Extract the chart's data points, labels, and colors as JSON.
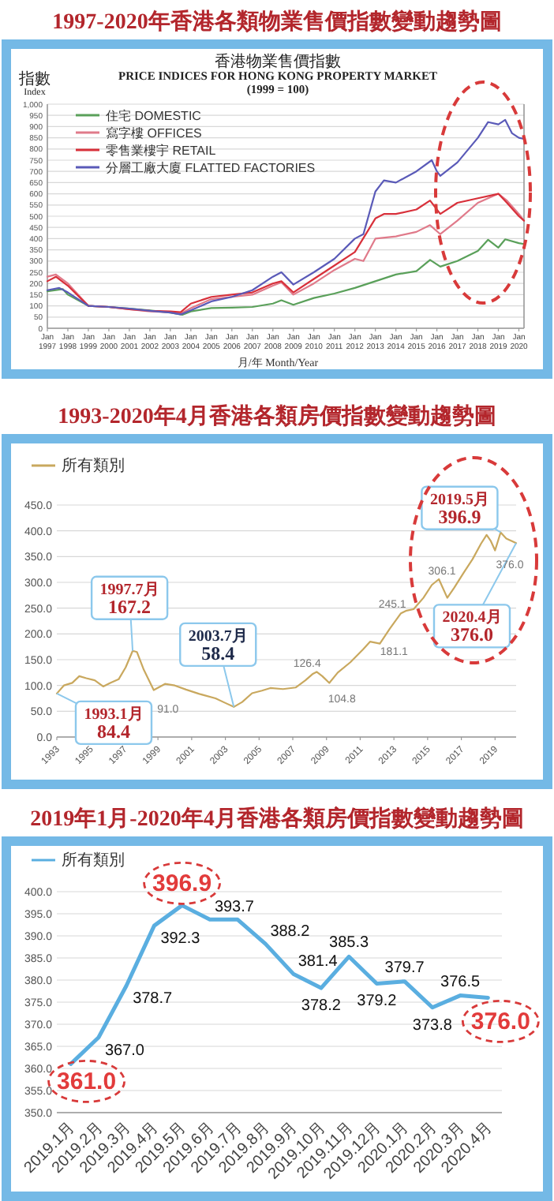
{
  "chart_data": [
    {
      "type": "line",
      "title": "1997-2020年香港各類物業售價指數變動趨勢圖",
      "subtitle": "香港物業售價指數\nPRICE INDICES FOR HONG KONG PROPERTY MARKET\n(1999 = 100)",
      "ylabel": "指數\nIndex",
      "xlabel": "月/年 Month/Year",
      "legend": "top left",
      "grid": "y",
      "xlim": [
        "1997-01",
        "2020-04"
      ],
      "ylim": [
        0,
        1000
      ],
      "xticks": [
        {
          "value": "1997-01",
          "label": "Jan 1997"
        },
        {
          "value": "1998-01",
          "label": "Jan 1998"
        },
        {
          "value": "1999-01",
          "label": "Jan 1999"
        },
        {
          "value": "2000-01",
          "label": "Jan 2000"
        },
        {
          "value": "2001-01",
          "label": "Jan 2001"
        },
        {
          "value": "2002-01",
          "label": "Jan 2002"
        },
        {
          "value": "2003-01",
          "label": "Jan 2003"
        },
        {
          "value": "2004-01",
          "label": "Jan 2004"
        },
        {
          "value": "2005-01",
          "label": "Jan 2005"
        },
        {
          "value": "2006-01",
          "label": "Jan 2006"
        },
        {
          "value": "2007-01",
          "label": "Jan 2007"
        },
        {
          "value": "2008-01",
          "label": "Jan 2008"
        },
        {
          "value": "2009-01",
          "label": "Jan 2009"
        },
        {
          "value": "2010-01",
          "label": "Jan 2010"
        },
        {
          "value": "2011-01",
          "label": "Jan 2011"
        },
        {
          "value": "2012-01",
          "label": "Jan 2012"
        },
        {
          "value": "2013-01",
          "label": "Jan 2013"
        },
        {
          "value": "2014-01",
          "label": "Jan 2014"
        },
        {
          "value": "2015-01",
          "label": "Jan 2015"
        },
        {
          "value": "2016-01",
          "label": "Jan 2016"
        },
        {
          "value": "2017-01",
          "label": "Jan 2017"
        },
        {
          "value": "2018-01",
          "label": "Jan 2018"
        },
        {
          "value": "2019-01",
          "label": "Jan 2019"
        },
        {
          "value": "2020-01",
          "label": "Jan 2020"
        }
      ],
      "yticks": [
        0,
        50,
        100,
        150,
        200,
        250,
        300,
        350,
        400,
        450,
        500,
        550,
        600,
        650,
        700,
        750,
        800,
        850,
        900,
        950,
        {
          "value": 1000,
          "label": "1,000"
        }
      ],
      "series": [
        {
          "name": "住宅 DOMESTIC",
          "color": "#5aa05a",
          "x": [
            "1997-01",
            "1997-10",
            "1998-01",
            "1999-01",
            "2000-01",
            "2001-01",
            "2002-01",
            "2003-01",
            "2003-08",
            "2004-01",
            "2005-01",
            "2006-01",
            "2007-01",
            "2008-01",
            "2008-06",
            "2009-01",
            "2010-01",
            "2011-01",
            "2012-01",
            "2013-01",
            "2014-01",
            "2015-01",
            "2015-09",
            "2016-03",
            "2017-01",
            "2018-01",
            "2018-07",
            "2019-01",
            "2019-05",
            "2020-01",
            "2020-04"
          ],
          "values": [
            165,
            175,
            150,
            100,
            95,
            88,
            80,
            70,
            60,
            75,
            90,
            92,
            95,
            110,
            125,
            105,
            135,
            155,
            180,
            210,
            240,
            255,
            305,
            275,
            300,
            345,
            395,
            360,
            397,
            380,
            376
          ]
        },
        {
          "name": "寫字樓 OFFICES",
          "color": "#e07a8a",
          "x": [
            "1997-01",
            "1997-06",
            "1998-01",
            "1999-01",
            "2000-01",
            "2001-01",
            "2002-01",
            "2003-01",
            "2003-07",
            "2004-01",
            "2005-01",
            "2006-01",
            "2007-01",
            "2008-01",
            "2008-06",
            "2009-01",
            "2010-01",
            "2011-01",
            "2012-01",
            "2012-06",
            "2013-01",
            "2014-01",
            "2015-01",
            "2015-09",
            "2016-03",
            "2017-01",
            "2018-01",
            "2019-01",
            "2019-06",
            "2020-01",
            "2020-04"
          ],
          "values": [
            230,
            240,
            200,
            100,
            95,
            85,
            75,
            72,
            65,
            90,
            130,
            140,
            150,
            190,
            205,
            150,
            200,
            260,
            310,
            300,
            400,
            410,
            430,
            460,
            420,
            480,
            560,
            600,
            570,
            510,
            480
          ]
        },
        {
          "name": "零售業樓宇 RETAIL",
          "color": "#d8303a",
          "x": [
            "1997-01",
            "1997-06",
            "1998-01",
            "1999-01",
            "2000-01",
            "2001-01",
            "2002-01",
            "2003-01",
            "2003-07",
            "2004-01",
            "2005-01",
            "2006-01",
            "2007-01",
            "2008-01",
            "2008-06",
            "2009-01",
            "2010-01",
            "2011-01",
            "2012-01",
            "2013-01",
            "2013-06",
            "2014-01",
            "2015-01",
            "2015-09",
            "2016-03",
            "2017-01",
            "2018-01",
            "2019-01",
            "2019-06",
            "2020-01",
            "2020-04"
          ],
          "values": [
            210,
            230,
            190,
            100,
            95,
            85,
            78,
            75,
            72,
            110,
            140,
            150,
            160,
            200,
            210,
            160,
            220,
            280,
            340,
            490,
            510,
            510,
            530,
            570,
            510,
            560,
            580,
            600,
            560,
            500,
            480
          ]
        },
        {
          "name": "分層工廠大廈 FLATTED FACTORIES",
          "color": "#5a5ab8",
          "x": [
            "1997-01",
            "1997-08",
            "1998-01",
            "1999-01",
            "2000-01",
            "2001-01",
            "2002-01",
            "2003-01",
            "2003-07",
            "2004-01",
            "2005-01",
            "2006-01",
            "2007-01",
            "2008-01",
            "2008-06",
            "2009-01",
            "2010-01",
            "2011-01",
            "2012-01",
            "2012-06",
            "2013-01",
            "2013-06",
            "2014-01",
            "2015-01",
            "2015-10",
            "2016-01",
            "2016-03",
            "2017-01",
            "2018-01",
            "2018-07",
            "2019-01",
            "2019-05",
            "2019-09",
            "2020-01",
            "2020-04"
          ],
          "values": [
            170,
            180,
            160,
            100,
            95,
            88,
            78,
            70,
            62,
            80,
            120,
            140,
            170,
            230,
            250,
            195,
            250,
            310,
            400,
            420,
            610,
            660,
            650,
            700,
            750,
            700,
            680,
            740,
            850,
            920,
            910,
            930,
            870,
            850,
            845
          ]
        }
      ]
    },
    {
      "type": "line",
      "title": "1993-2020年4月香港各類房價指數變動趨勢圖",
      "legend": "top left",
      "grid": "y",
      "xlim": [
        "1993-01",
        "2020-04"
      ],
      "ylim": [
        0,
        450
      ],
      "xticks": [
        {
          "value": "1993-01",
          "label": "1993"
        },
        {
          "value": "1995-01",
          "label": "1995"
        },
        {
          "value": "1997-01",
          "label": "1997"
        },
        {
          "value": "1999-01",
          "label": "1999"
        },
        {
          "value": "2001-01",
          "label": "2001"
        },
        {
          "value": "2003-01",
          "label": "2003"
        },
        {
          "value": "2005-01",
          "label": "2005"
        },
        {
          "value": "2007-01",
          "label": "2007"
        },
        {
          "value": "2009-01",
          "label": "2009"
        },
        {
          "value": "2011-01",
          "label": "2011"
        },
        {
          "value": "2013-01",
          "label": "2013"
        },
        {
          "value": "2015-01",
          "label": "2015"
        },
        {
          "value": "2017-01",
          "label": "2017"
        },
        {
          "value": "2019-01",
          "label": "2019"
        }
      ],
      "yticks": [
        {
          "value": 0,
          "label": "0.0"
        },
        {
          "value": 50,
          "label": "50.0"
        },
        {
          "value": 100,
          "label": "100.0"
        },
        {
          "value": 150,
          "label": "150.0"
        },
        {
          "value": 200,
          "label": "200.0"
        },
        {
          "value": 250,
          "label": "250.0"
        },
        {
          "value": 300,
          "label": "300.0"
        },
        {
          "value": 350,
          "label": "350.0"
        },
        {
          "value": 400,
          "label": "400.0"
        },
        {
          "value": 450,
          "label": "450.0"
        }
      ],
      "series": [
        {
          "name": "所有類別",
          "color": "#c9a85e",
          "x": [
            "1993-01",
            "1993-06",
            "1993-12",
            "1994-05",
            "1994-10",
            "1995-04",
            "1995-10",
            "1996-03",
            "1996-09",
            "1997-02",
            "1997-07",
            "1997-10",
            "1998-03",
            "1998-10",
            "1999-06",
            "2000-01",
            "2000-09",
            "2001-06",
            "2002-06",
            "2003-01",
            "2003-07",
            "2004-01",
            "2004-08",
            "2005-03",
            "2005-09",
            "2006-06",
            "2007-03",
            "2007-10",
            "2008-03",
            "2008-06",
            "2008-10",
            "2009-03",
            "2009-09",
            "2010-06",
            "2011-03",
            "2011-08",
            "2012-03",
            "2012-10",
            "2013-06",
            "2013-10",
            "2014-03",
            "2014-10",
            "2015-04",
            "2015-09",
            "2016-03",
            "2016-08",
            "2017-03",
            "2017-09",
            "2018-03",
            "2018-07",
            "2018-10",
            "2019-01",
            "2019-05",
            "2019-09",
            "2020-01",
            "2020-04"
          ],
          "values": [
            84.4,
            100,
            105,
            118,
            114,
            110,
            98,
            105,
            112,
            135,
            167.2,
            165,
            130,
            91,
            103,
            100,
            92,
            84,
            75,
            66,
            58.4,
            68,
            85,
            90,
            95,
            93,
            96,
            110,
            122,
            126.4,
            118,
            104.8,
            125,
            145,
            170,
            185,
            181.1,
            210,
            240,
            245.1,
            248,
            270,
            295,
            306.1,
            270,
            290,
            320,
            345,
            375,
            392,
            380,
            362,
            396.9,
            385,
            380,
            376.0
          ]
        }
      ],
      "annotations": [
        {
          "text": "1993.1月\n84.4",
          "x": "1993-01",
          "y": 84.4
        },
        {
          "text": "1997.7月\n167.2",
          "x": "1997-07",
          "y": 167.2
        },
        {
          "text": "2003.7月\n58.4",
          "x": "2003-07",
          "y": 58.4
        },
        {
          "text": "2019.5月\n396.9",
          "x": "2019-05",
          "y": 396.9
        },
        {
          "text": "2020.4月\n376.0",
          "x": "2020-04",
          "y": 376.0
        },
        {
          "text": "91.0",
          "x": "1998-10",
          "y": 91
        },
        {
          "text": "126.4",
          "x": "2008-06",
          "y": 126.4
        },
        {
          "text": "104.8",
          "x": "2009-03",
          "y": 104.8
        },
        {
          "text": "181.1",
          "x": "2012-03",
          "y": 181.1
        },
        {
          "text": "245.1",
          "x": "2013-10",
          "y": 245.1
        },
        {
          "text": "306.1",
          "x": "2015-09",
          "y": 306.1
        },
        {
          "text": "376.0",
          "x": "2020-04",
          "y": 376.0
        }
      ]
    },
    {
      "type": "line",
      "title": "2019年1月-2020年4月香港各類房價指數變動趨勢圖",
      "legend": "top left",
      "grid": "y",
      "ylim": [
        350,
        400
      ],
      "categories": [
        "2019.1月",
        "2019.2月",
        "2019.3月",
        "2019.4月",
        "2019.5月",
        "2019.6月",
        "2019.7月",
        "2019.8月",
        "2019.9月",
        "2019.10月",
        "2019.11月",
        "2019.12月",
        "2020.1月",
        "2020.2月",
        "2020.3月",
        "2020.4月"
      ],
      "yticks": [
        {
          "value": 350,
          "label": "350.0"
        },
        {
          "value": 355,
          "label": "355.0"
        },
        {
          "value": 360,
          "label": "360.0"
        },
        {
          "value": 365,
          "label": "365.0"
        },
        {
          "value": 370,
          "label": "370.0"
        },
        {
          "value": 375,
          "label": "375.0"
        },
        {
          "value": 380,
          "label": "380.0"
        },
        {
          "value": 385,
          "label": "385.0"
        },
        {
          "value": 390,
          "label": "390.0"
        },
        {
          "value": 395,
          "label": "395.0"
        },
        {
          "value": 400,
          "label": "400.0"
        }
      ],
      "series": [
        {
          "name": "所有類別",
          "color": "#5aaee0",
          "values": [
            361.0,
            367.0,
            378.7,
            392.3,
            396.9,
            393.7,
            393.7,
            388.2,
            381.4,
            378.2,
            385.3,
            379.2,
            379.7,
            373.8,
            376.5,
            376.0
          ],
          "value_labels": [
            null,
            "367.0",
            "378.7",
            "392.3",
            null,
            "393.7",
            null,
            "388.2",
            "381.4",
            "378.2",
            "385.3",
            "379.2",
            "379.7",
            "373.8",
            "376.5",
            null
          ]
        }
      ],
      "annotations": [
        {
          "text": "361.0",
          "x": "2019.1月",
          "y": 361.0
        },
        {
          "text": "396.9",
          "x": "2019.5月",
          "y": 396.9
        },
        {
          "text": "376.0",
          "x": "2020.4月",
          "y": 376.0
        }
      ]
    }
  ]
}
